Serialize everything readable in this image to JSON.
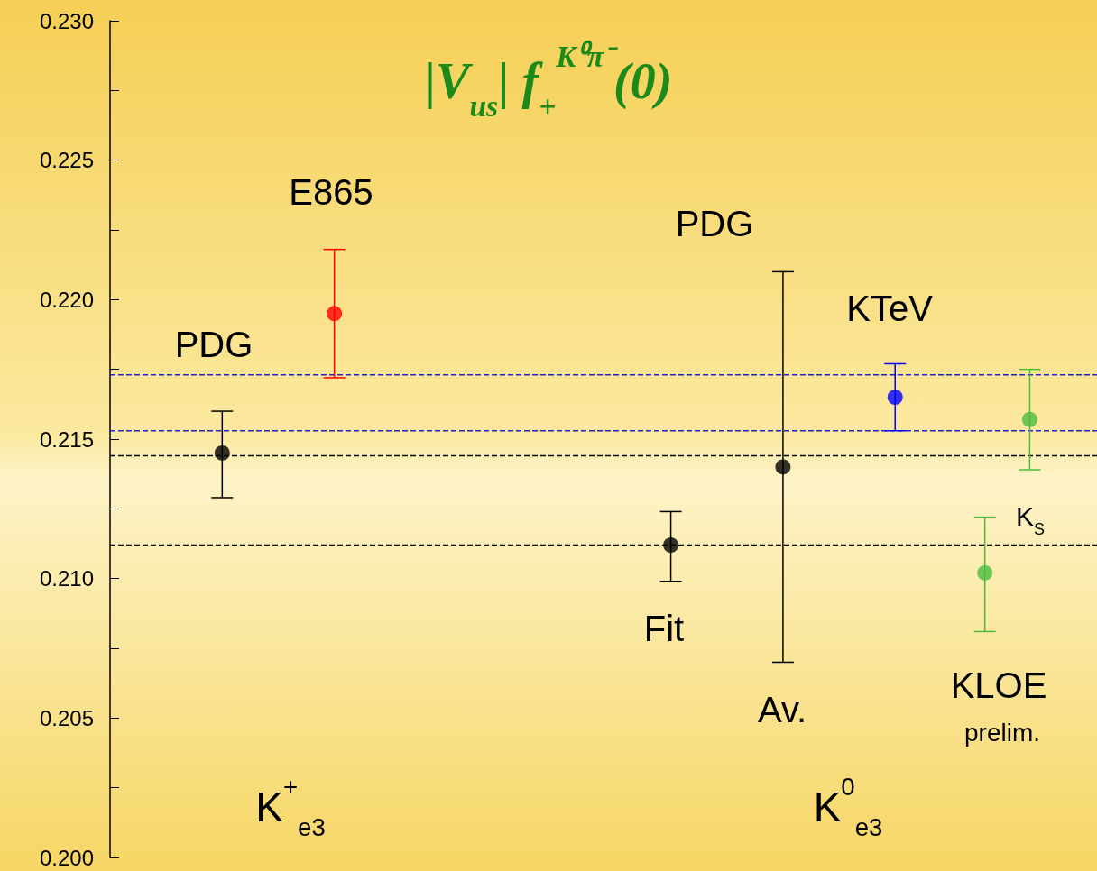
{
  "chart_data": {
    "type": "scatter",
    "title": "|V$_{us}$| f$_{+}$$^{K⁰π⁻}$(0)",
    "categories": [
      null,
      null,
      null,
      null,
      null,
      null,
      null,
      null,
      null,
      null,
      null,
      null,
      null,
      null,
      null,
      null,
      null,
      null,
      null,
      null,
      null,
      null,
      null,
      null,
      null,
      null,
      null,
      null,
      null,
      null,
      null,
      null,
      null,
      null,
      null,
      null,
      null,
      null,
      null,
      null,
      null,
      null,
      null,
      null,
      null
    ],
    "ylim": [
      0.2,
      0.23
    ],
    "yticks": [
      {
        "value": 0.2,
        "label": "0.200"
      },
      {
        "value": 0.2025,
        "label": null
      },
      {
        "value": 0.205,
        "label": "0.205"
      },
      {
        "value": 0.2075,
        "label": null
      },
      {
        "value": 0.21,
        "label": "0.210"
      },
      {
        "value": 0.2125,
        "label": null
      },
      {
        "value": 0.215,
        "label": "0.215"
      },
      {
        "value": 0.2175,
        "label": null
      },
      {
        "value": 0.22,
        "label": "0.220"
      },
      {
        "value": 0.2225,
        "label": null
      },
      {
        "value": 0.225,
        "label": "0.225"
      },
      {
        "value": 0.2275,
        "label": null
      },
      {
        "value": 0.23,
        "label": "0.230"
      }
    ],
    "tick_labels": "y",
    "marker": "circle",
    "series": [
      {
        "color": "#000000",
        "values": [
          null,
          null,
          null,
          null,
          null,
          0.2145,
          null,
          null,
          null,
          null,
          null,
          null,
          null,
          null,
          null,
          null,
          null,
          null,
          null,
          null,
          null,
          null,
          null,
          null,
          null,
          0.2112,
          null,
          null,
          null,
          null,
          0.214,
          null,
          null,
          null,
          null,
          null,
          null,
          null,
          null,
          null,
          null,
          null,
          null,
          null,
          null
        ],
        "errors": [
          null,
          null,
          null,
          null,
          null,
          [
            0.2129,
            0.216
          ],
          null,
          null,
          null,
          null,
          null,
          null,
          null,
          null,
          null,
          null,
          null,
          null,
          null,
          null,
          null,
          null,
          null,
          null,
          null,
          [
            0.2099,
            0.2124
          ],
          null,
          null,
          null,
          null,
          [
            0.207,
            0.221
          ],
          null,
          null,
          null,
          null,
          null,
          null,
          null,
          null,
          null,
          null,
          null,
          null,
          null,
          null
        ]
      },
      {
        "color": "#ff0000",
        "values": [
          null,
          null,
          null,
          null,
          null,
          null,
          null,
          null,
          null,
          null,
          0.2195,
          null,
          null,
          null,
          null,
          null,
          null,
          null,
          null,
          null,
          null,
          null,
          null,
          null,
          null,
          null,
          null,
          null,
          null,
          null,
          null,
          null,
          null,
          null,
          null,
          null,
          null,
          null,
          null,
          null,
          null,
          null,
          null,
          null,
          null
        ],
        "errors": [
          null,
          null,
          null,
          null,
          null,
          null,
          null,
          null,
          null,
          null,
          [
            0.2172,
            0.2218
          ],
          null,
          null,
          null,
          null,
          null,
          null,
          null,
          null,
          null,
          null,
          null,
          null,
          null,
          null,
          null,
          null,
          null,
          null,
          null,
          null,
          null,
          null,
          null,
          null,
          null,
          null,
          null,
          null,
          null,
          null,
          null,
          null,
          null,
          null
        ]
      },
      {
        "color": "#0000ff",
        "values": [
          null,
          null,
          null,
          null,
          null,
          null,
          null,
          null,
          null,
          null,
          null,
          null,
          null,
          null,
          null,
          null,
          null,
          null,
          null,
          null,
          null,
          null,
          null,
          null,
          null,
          null,
          null,
          null,
          null,
          null,
          null,
          null,
          null,
          null,
          null,
          0.2165,
          null,
          null,
          null,
          null,
          null,
          null,
          null,
          null,
          null
        ],
        "errors": [
          null,
          null,
          null,
          null,
          null,
          null,
          null,
          null,
          null,
          null,
          null,
          null,
          null,
          null,
          null,
          null,
          null,
          null,
          null,
          null,
          null,
          null,
          null,
          null,
          null,
          null,
          null,
          null,
          null,
          null,
          null,
          null,
          null,
          null,
          null,
          [
            0.2153,
            0.2177
          ],
          null,
          null,
          null,
          null,
          null,
          null,
          null,
          null,
          null
        ]
      },
      {
        "color": "#4cbb3c",
        "values": [
          null,
          null,
          null,
          null,
          null,
          null,
          null,
          null,
          null,
          null,
          null,
          null,
          null,
          null,
          null,
          null,
          null,
          null,
          null,
          null,
          null,
          null,
          null,
          null,
          null,
          null,
          null,
          null,
          null,
          null,
          null,
          null,
          null,
          null,
          null,
          null,
          null,
          null,
          null,
          0.2102,
          null,
          0.2157,
          null,
          null,
          null
        ],
        "errors": [
          null,
          null,
          null,
          null,
          null,
          null,
          null,
          null,
          null,
          null,
          null,
          null,
          null,
          null,
          null,
          null,
          null,
          null,
          null,
          null,
          null,
          null,
          null,
          null,
          null,
          null,
          null,
          null,
          null,
          null,
          null,
          null,
          null,
          null,
          null,
          null,
          null,
          null,
          null,
          [
            0.2081,
            0.2122
          ],
          null,
          [
            0.2139,
            0.2175
          ],
          null,
          null,
          null
        ]
      }
    ],
    "ref_lines": [
      {
        "axis": "y",
        "value": 0.2173,
        "color": "#2222cc",
        "line_style": "dashed"
      },
      {
        "axis": "y",
        "value": 0.2153,
        "color": "#2222cc",
        "line_style": "dashed"
      },
      {
        "axis": "y",
        "value": 0.2144,
        "color": "#000000",
        "line_style": "dashed"
      },
      {
        "axis": "y",
        "value": 0.2112,
        "color": "#000000",
        "line_style": "dashed"
      }
    ],
    "annotations": [
      "PDG",
      "E865",
      "PDG",
      "KTeV",
      "Fit",
      "Av.",
      "KLOE",
      "prelim.",
      "K$_{S}$",
      "K$^{+}$$_{e3}$",
      "K$^{0}$$_{e3}$"
    ]
  }
}
